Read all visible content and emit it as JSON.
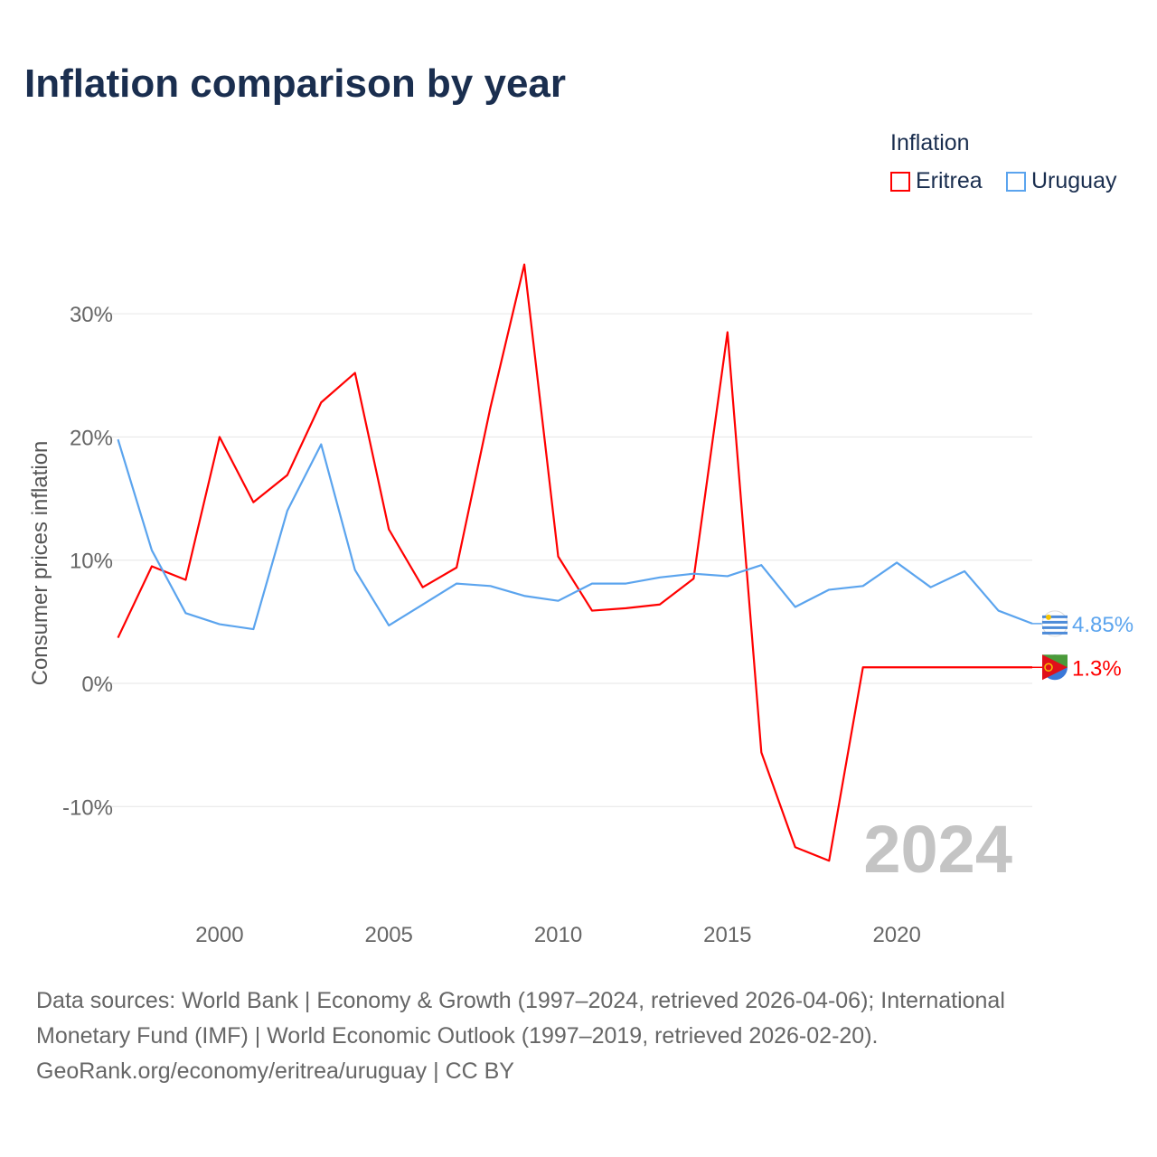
{
  "chart_data": {
    "type": "line",
    "title": "Inflation comparison by year",
    "ylabel": "Consumer prices inflation",
    "xlabel": "",
    "legend_title": "Inflation",
    "legend_placement": "top-right",
    "x": [
      1997,
      1998,
      1999,
      2000,
      2001,
      2002,
      2003,
      2004,
      2005,
      2006,
      2007,
      2008,
      2009,
      2010,
      2011,
      2012,
      2013,
      2014,
      2015,
      2016,
      2017,
      2018,
      2019,
      2020,
      2021,
      2022,
      2023,
      2024
    ],
    "series": [
      {
        "name": "Eritrea",
        "color": "#ff0000",
        "end_label": "1.3%",
        "values": [
          3.7,
          9.5,
          8.4,
          20.0,
          14.7,
          16.9,
          22.8,
          25.2,
          12.5,
          7.8,
          9.4,
          22.4,
          34.0,
          10.3,
          5.9,
          6.1,
          6.4,
          8.5,
          28.5,
          -5.6,
          -13.3,
          -14.4,
          1.3,
          1.3,
          1.3,
          1.3,
          1.3,
          1.3
        ]
      },
      {
        "name": "Uruguay",
        "color": "#5ba4ee",
        "end_label": "4.85%",
        "values": [
          19.8,
          10.8,
          5.7,
          4.8,
          4.4,
          14.0,
          19.4,
          9.2,
          4.7,
          6.4,
          8.1,
          7.9,
          7.1,
          6.7,
          8.1,
          8.1,
          8.6,
          8.9,
          8.7,
          9.6,
          6.2,
          7.6,
          7.9,
          9.8,
          7.8,
          9.1,
          5.9,
          4.85
        ]
      }
    ],
    "xlim": [
      1997,
      2024
    ],
    "ylim": [
      -18,
      40
    ],
    "x_ticks": [
      2000,
      2005,
      2010,
      2015,
      2020
    ],
    "x_tick_labels": [
      "2000",
      "2005",
      "2010",
      "2015",
      "2020"
    ],
    "y_ticks": [
      -10,
      0,
      10,
      20,
      30
    ],
    "y_tick_labels": [
      "-10%",
      "0%",
      "10%",
      "20%",
      "30%"
    ],
    "grid": true,
    "watermark_year": "2024"
  },
  "footer": {
    "line1": "Data sources: World Bank | Economy & Growth (1997–2024, retrieved 2026-04-06); International",
    "line2": "Monetary Fund (IMF) | World Economic Outlook (1997–2019, retrieved 2026-02-20).",
    "line3": "GeoRank.org/economy/eritrea/uruguay | CC BY"
  }
}
